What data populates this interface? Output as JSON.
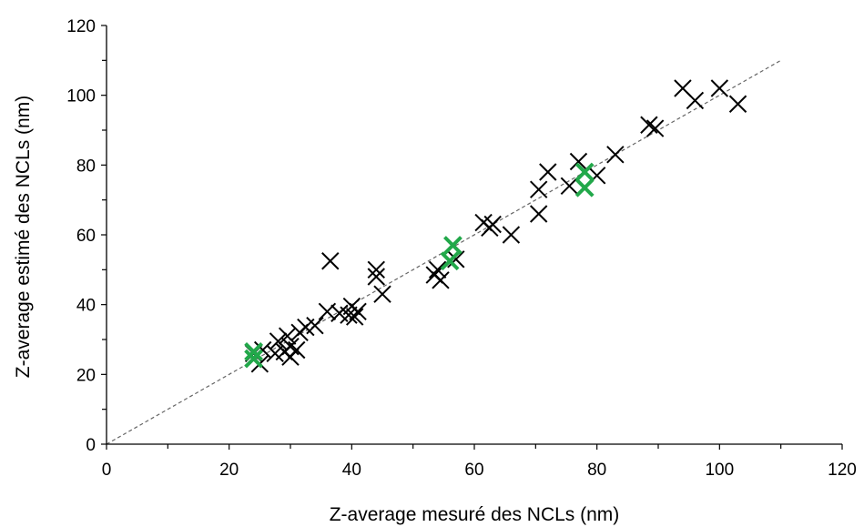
{
  "chart_data": {
    "type": "scatter",
    "title": "",
    "xlabel": "Z-average mesuré des NCLs (nm)",
    "ylabel": "Z-average estimé des NCLs (nm)",
    "xlim": [
      0,
      120
    ],
    "ylim": [
      0,
      120
    ],
    "x_ticks": [
      "0",
      "20",
      "40",
      "60",
      "80",
      "100",
      "120"
    ],
    "y_ticks": [
      "0",
      "20",
      "40",
      "60",
      "80",
      "100",
      "120"
    ],
    "grid": false,
    "legend": "none",
    "marker": "x",
    "reference_line": {
      "style": "dashed",
      "color": "#666666",
      "from": [
        0,
        0
      ],
      "to": [
        110,
        110
      ]
    },
    "series": [
      {
        "color": "#000000",
        "points": [
          [
            24,
            26
          ],
          [
            25,
            23
          ],
          [
            25.5,
            27
          ],
          [
            27.5,
            26
          ],
          [
            28,
            29.5
          ],
          [
            29,
            26.5
          ],
          [
            29.5,
            31
          ],
          [
            30,
            25
          ],
          [
            30,
            28
          ],
          [
            31,
            27
          ],
          [
            31.5,
            32
          ],
          [
            32.5,
            33.5
          ],
          [
            34,
            34
          ],
          [
            36,
            38
          ],
          [
            36.5,
            52.5
          ],
          [
            38,
            37.5
          ],
          [
            39.5,
            37
          ],
          [
            40,
            39.5
          ],
          [
            40.5,
            36.5
          ],
          [
            41,
            38
          ],
          [
            44,
            48
          ],
          [
            44,
            50
          ],
          [
            45,
            43
          ],
          [
            53.5,
            48.5
          ],
          [
            54,
            50
          ],
          [
            54.5,
            47
          ],
          [
            57,
            53
          ],
          [
            61.5,
            63.5
          ],
          [
            62.5,
            62
          ],
          [
            63,
            63
          ],
          [
            66,
            60
          ],
          [
            70.5,
            66
          ],
          [
            70.5,
            73
          ],
          [
            72,
            78
          ],
          [
            75.5,
            74
          ],
          [
            77,
            81
          ],
          [
            80,
            77
          ],
          [
            83,
            83
          ],
          [
            88.5,
            91.5
          ],
          [
            89.5,
            90.5
          ],
          [
            94,
            102
          ],
          [
            96,
            98.5
          ],
          [
            100,
            102
          ],
          [
            103,
            97.5
          ]
        ]
      },
      {
        "color": "#22a84a",
        "points": [
          [
            24,
            24.5
          ],
          [
            24,
            26.5
          ],
          [
            56,
            52.5
          ],
          [
            56.5,
            57
          ],
          [
            78,
            73.5
          ],
          [
            78,
            78
          ]
        ]
      }
    ]
  }
}
